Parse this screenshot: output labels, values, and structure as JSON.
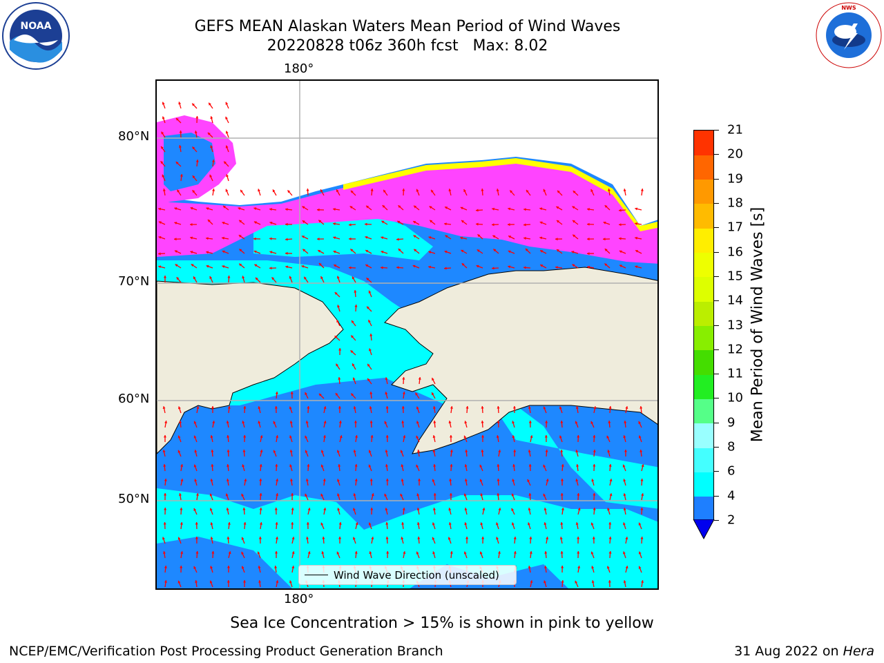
{
  "header": {
    "title_line1": "GEFS MEAN Alaskan Waters Mean Period of Wind Waves",
    "title_line2": "20220828 t06z 360h fcst   Max: 8.02"
  },
  "logos": {
    "left": {
      "name": "noaa-logo",
      "text": "NOAA"
    },
    "right": {
      "name": "nws-logo",
      "text": "NATIONAL WEATHER SERVICE"
    }
  },
  "map": {
    "lon_label_top": "180°",
    "lon_label_bottom": "180°",
    "lat_labels": [
      "80°N",
      "70°N",
      "60°N",
      "50°N"
    ],
    "legend_label": "Wind Wave Direction (unscaled)",
    "arrow_color": "#ff0000",
    "land_color": "#efecdc",
    "ocean_colors": {
      "low": "#1e88ff",
      "mid": "#00ffff",
      "ice_pink": "#ff33ff",
      "ice_yellow": "#ffff00"
    }
  },
  "colorbar": {
    "label": "Mean Period of Wind Waves [s]",
    "ticks": [
      "2",
      "4",
      "6",
      "8",
      "9",
      "10",
      "11",
      "12",
      "13",
      "14",
      "15",
      "16",
      "17",
      "18",
      "19",
      "20",
      "21"
    ],
    "colors": [
      "#1e7fff",
      "#00ffff",
      "#44ffff",
      "#99ffff",
      "#55ff88",
      "#22ee22",
      "#44dd00",
      "#88ee00",
      "#bbee00",
      "#ddff00",
      "#eeff00",
      "#ffee00",
      "#ffbb00",
      "#ff9900",
      "#ff6600",
      "#ff3300"
    ],
    "extend_color": "#0000ee"
  },
  "notes": {
    "ice_note": "Sea Ice Concentration > 15% is shown in pink to yellow",
    "footer_left": "NCEP/EMC/Verification Post Processing Product Generation Branch",
    "footer_date": "31 Aug 2022 on ",
    "footer_machine": "Hera"
  }
}
